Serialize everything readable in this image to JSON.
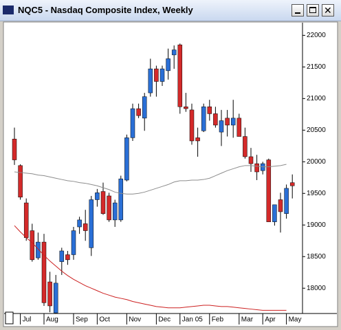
{
  "window": {
    "title": "NQC5 - Nasdaq Composite Index, Weekly"
  },
  "chart_data": {
    "type": "candlestick",
    "categories": [
      null,
      null,
      null,
      null,
      null,
      null,
      null,
      null,
      null,
      null,
      null,
      null,
      null,
      null,
      null,
      null,
      null,
      null,
      null,
      null,
      null,
      null,
      null,
      null,
      null,
      null,
      null,
      null,
      null,
      null,
      null,
      null,
      null,
      null,
      null,
      null,
      null,
      null,
      null,
      null,
      null,
      null,
      null,
      null,
      null,
      null,
      null,
      null
    ],
    "open": [
      20360,
      19940,
      19350,
      18910,
      18480,
      18730,
      18100,
      17610,
      18420,
      18530,
      18530,
      18970,
      19020,
      18640,
      19400,
      19530,
      19460,
      19080,
      19080,
      19710,
      20380,
      20840,
      20690,
      21090,
      21470,
      21270,
      21440,
      21690,
      21850,
      20870,
      20820,
      20380,
      20490,
      20870,
      20760,
      20470,
      20690,
      20580,
      20690,
      20400,
      20080,
      19970,
      19860,
      20030,
      19050,
      19400,
      19180,
      19670
    ],
    "high": [
      20540,
      19960,
      19420,
      19020,
      18880,
      18860,
      18260,
      18210,
      18640,
      18590,
      18970,
      19130,
      19240,
      19460,
      19570,
      19670,
      19510,
      19400,
      19780,
      20430,
      20920,
      20920,
      21090,
      21630,
      21520,
      21520,
      21790,
      21840,
      21870,
      21090,
      20920,
      20540,
      20920,
      20980,
      20870,
      20820,
      20820,
      20980,
      20760,
      20540,
      20220,
      20110,
      20000,
      20050,
      19320,
      19510,
      19640,
      19800
    ],
    "low": [
      19950,
      19400,
      18750,
      18420,
      18450,
      17720,
      17620,
      17600,
      18210,
      18370,
      18450,
      18860,
      18750,
      18510,
      19290,
      19160,
      19050,
      18970,
      19050,
      19690,
      20330,
      20690,
      20490,
      21030,
      21030,
      21200,
      21300,
      21470,
      20760,
      20790,
      20270,
      20080,
      20470,
      20650,
      20540,
      20250,
      20400,
      20380,
      20400,
      20050,
      19840,
      19710,
      19800,
      19050,
      18990,
      18880,
      19100,
      19420
    ],
    "close": [
      20030,
      19440,
      18800,
      18450,
      18730,
      17770,
      17720,
      18080,
      18590,
      18450,
      18910,
      19080,
      18910,
      19400,
      19510,
      19180,
      19080,
      19350,
      19730,
      20380,
      20840,
      20730,
      21030,
      21470,
      21270,
      21470,
      21630,
      21770,
      20870,
      20840,
      20330,
      20330,
      20870,
      20760,
      20580,
      20650,
      20580,
      20690,
      20400,
      20080,
      19970,
      19840,
      19970,
      19050,
      19320,
      19210,
      19580,
      19620
    ],
    "up_color": "#2a6fd6",
    "down_color": "#d42a2a",
    "series": [
      {
        "color": "#8c8c8c",
        "values": [
          19840,
          19830,
          19820,
          19810,
          19790,
          19780,
          19760,
          19740,
          19720,
          19700,
          19690,
          19670,
          19660,
          19640,
          19620,
          19590,
          19560,
          19520,
          19500,
          19490,
          19490,
          19500,
          19520,
          19550,
          19580,
          19610,
          19640,
          19680,
          19700,
          19700,
          19710,
          19710,
          19720,
          19740,
          19780,
          19820,
          19860,
          19890,
          19920,
          19940,
          19940,
          19930,
          19920,
          19920,
          19930,
          19940,
          19960,
          null
        ]
      },
      {
        "color": "#cc1f1f",
        "values": [
          18990,
          18890,
          18800,
          18720,
          18620,
          18520,
          18430,
          18350,
          18270,
          18200,
          18140,
          18090,
          18040,
          18000,
          17960,
          17920,
          17890,
          17860,
          17840,
          17820,
          17790,
          17770,
          17750,
          17730,
          17710,
          17700,
          17690,
          17690,
          17690,
          17700,
          17710,
          17720,
          17730,
          17730,
          17720,
          17710,
          17710,
          17700,
          17690,
          17680,
          17670,
          17660,
          17650,
          17650,
          17650,
          17650,
          17650,
          null
        ]
      }
    ],
    "ylim": [
      17600,
      22200
    ],
    "yticks": [
      18000,
      18500,
      19000,
      19500,
      20000,
      20500,
      21000,
      21500,
      22000
    ],
    "xticks": [
      {
        "value": 1,
        "label": "Jul"
      },
      {
        "value": 5,
        "label": "Aug"
      },
      {
        "value": 10,
        "label": "Sep"
      },
      {
        "value": 14,
        "label": "Oct"
      },
      {
        "value": 19,
        "label": "Nov"
      },
      {
        "value": 24,
        "label": "Dec"
      },
      {
        "value": 28,
        "label": "Jan 05"
      },
      {
        "value": 33,
        "label": "Feb"
      },
      {
        "value": 38,
        "label": "Mar"
      },
      {
        "value": 42,
        "label": "Apr"
      },
      {
        "value": 46,
        "label": "May"
      }
    ],
    "grid": false
  }
}
